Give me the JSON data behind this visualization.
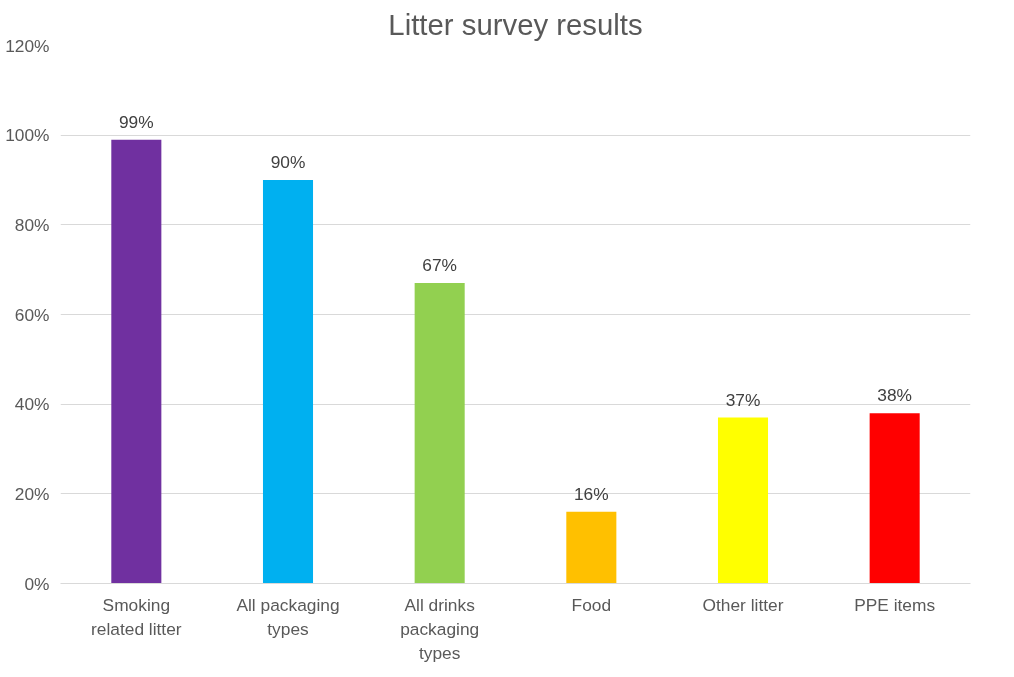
{
  "chart_data": {
    "type": "bar",
    "title": "Litter survey results",
    "categories": [
      "Smoking related litter",
      "All packaging types",
      "All drinks packaging types",
      "Food",
      "Other litter",
      "PPE items"
    ],
    "values": [
      99,
      90,
      67,
      16,
      37,
      38
    ],
    "colors": [
      "#7030a0",
      "#00b0f0",
      "#92d050",
      "#ffc000",
      "#ffff00",
      "#ff0000"
    ],
    "value_labels": [
      "99%",
      "90%",
      "67%",
      "16%",
      "37%",
      "38%"
    ],
    "ylim": [
      0,
      120
    ],
    "yticks": [
      {
        "value": 0,
        "label": "0%"
      },
      {
        "value": 20,
        "label": "20%"
      },
      {
        "value": 40,
        "label": "40%"
      },
      {
        "value": 60,
        "label": "60%"
      },
      {
        "value": 80,
        "label": "80%"
      },
      {
        "value": 100,
        "label": "100%"
      },
      {
        "value": 120,
        "label": "120%"
      }
    ],
    "grid": "y"
  }
}
